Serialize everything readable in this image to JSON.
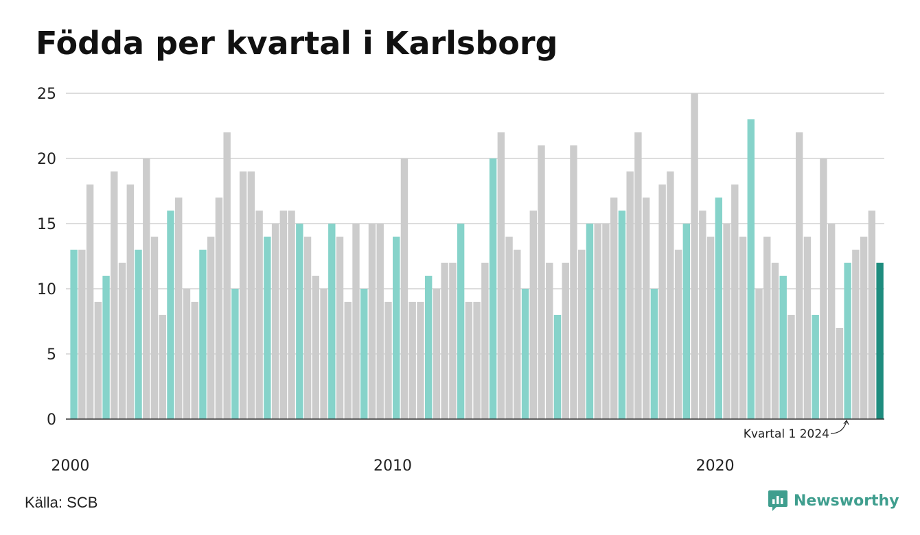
{
  "title": "Födda per kvartal i Karlsborg",
  "source": "Källa: SCB",
  "brand": {
    "name": "Newsworthy",
    "logo_icon": "newsworthy-logo-icon"
  },
  "colors": {
    "q1": "#86d3ca",
    "other": "#cccccc",
    "latest": "#1e8c7e",
    "grid": "#dddddd",
    "axis": "#333333",
    "brand": "#3f9e8e"
  },
  "chart_data": {
    "type": "bar",
    "title": "Födda per kvartal i Karlsborg",
    "xlabel": "",
    "ylabel": "",
    "ylim": [
      0,
      25
    ],
    "yticks": [
      0,
      5,
      10,
      15,
      20,
      25
    ],
    "xtick_labels": [
      "2000",
      "2010",
      "2020"
    ],
    "grid": true,
    "start_year": 2000,
    "values": [
      13,
      13,
      18,
      9,
      11,
      19,
      12,
      18,
      13,
      20,
      14,
      8,
      16,
      17,
      10,
      9,
      13,
      14,
      17,
      22,
      10,
      19,
      19,
      16,
      14,
      15,
      16,
      16,
      15,
      14,
      11,
      10,
      15,
      14,
      9,
      15,
      10,
      15,
      15,
      9,
      14,
      20,
      9,
      9,
      11,
      10,
      12,
      12,
      15,
      9,
      9,
      12,
      20,
      22,
      14,
      13,
      10,
      16,
      21,
      12,
      8,
      12,
      21,
      13,
      15,
      15,
      15,
      17,
      16,
      19,
      22,
      17,
      10,
      18,
      19,
      13,
      15,
      25,
      16,
      14,
      17,
      15,
      18,
      14,
      23,
      10,
      14,
      12,
      11,
      8,
      22,
      14,
      8,
      20,
      15,
      7,
      12,
      13,
      14,
      16,
      12
    ],
    "annotation": {
      "text": "Kvartal 1 2024",
      "target": "2024 Q1"
    }
  }
}
